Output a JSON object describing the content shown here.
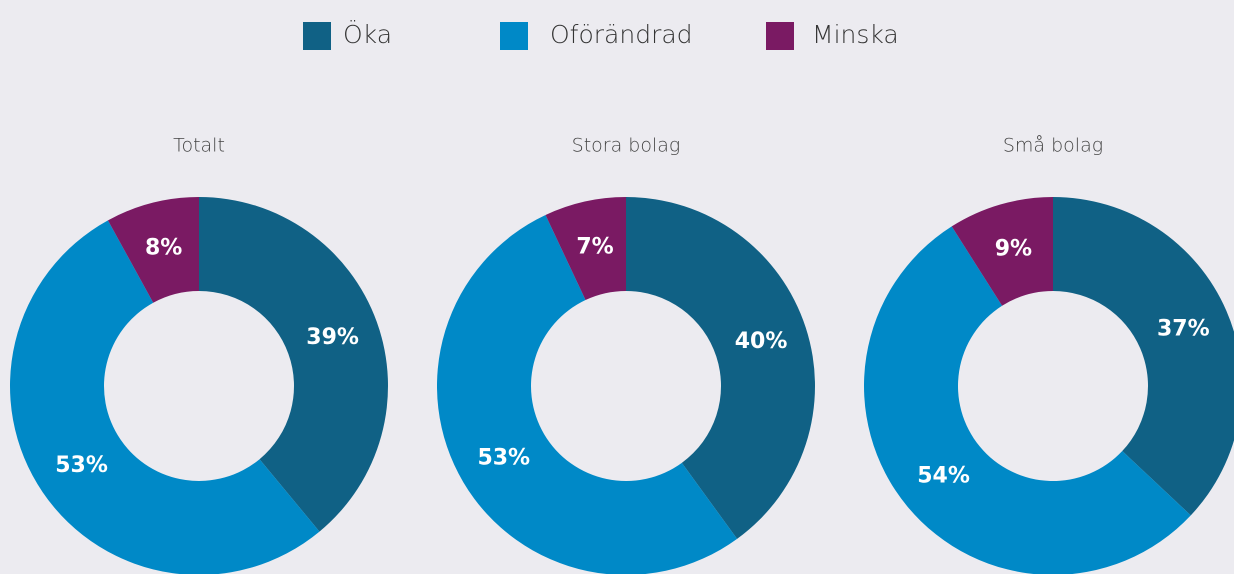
{
  "chart_data": [
    {
      "type": "pie",
      "title": "Totalt",
      "categories": [
        "Öka",
        "Oförändrad",
        "Minska"
      ],
      "values": [
        39,
        53,
        8
      ],
      "value_labels": [
        "39%",
        "53%",
        "8%"
      ],
      "colors": [
        "#106185",
        "#0089c7",
        "#7a1a63"
      ]
    },
    {
      "type": "pie",
      "title": "Stora bolag",
      "categories": [
        "Öka",
        "Oförändrad",
        "Minska"
      ],
      "values": [
        40,
        53,
        7
      ],
      "value_labels": [
        "40%",
        "53%",
        "7%"
      ],
      "colors": [
        "#106185",
        "#0089c7",
        "#7a1a63"
      ]
    },
    {
      "type": "pie",
      "title": "Små bolag",
      "categories": [
        "Öka",
        "Oförändrad",
        "Minska"
      ],
      "values": [
        37,
        54,
        9
      ],
      "value_labels": [
        "37%",
        "54%",
        "9%"
      ],
      "colors": [
        "#106185",
        "#0089c7",
        "#7a1a63"
      ]
    }
  ]
}
